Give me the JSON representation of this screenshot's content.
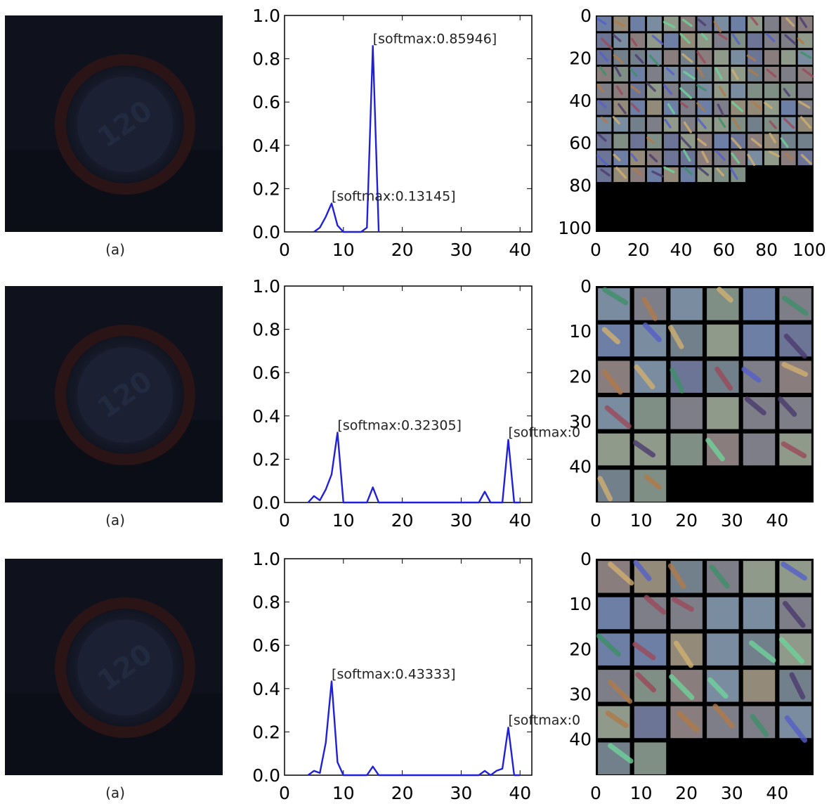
{
  "figure": {
    "captions": [
      "(a)",
      "(a)",
      "(a)"
    ],
    "sign_text": "120"
  },
  "chart_data": [
    {
      "type": "line",
      "title": "",
      "xlabel": "",
      "ylabel": "",
      "xlim": [
        0,
        42
      ],
      "ylim": [
        0,
        1
      ],
      "xticks": [
        "0",
        "10",
        "20",
        "30",
        "40"
      ],
      "yticks": [
        "0.0",
        "0.2",
        "0.4",
        "0.6",
        "0.8",
        "1.0"
      ],
      "x": [
        5,
        6,
        7,
        8,
        9,
        10,
        13,
        14,
        15,
        16
      ],
      "values": [
        0.0,
        0.02,
        0.07,
        0.13145,
        0.03,
        0.0,
        0.0,
        0.02,
        0.85946,
        0.0
      ],
      "color": "#2020d8",
      "annotations": [
        {
          "text": "[softmax:0.85946]",
          "x": 15,
          "y": 0.85946
        },
        {
          "text": "[softmax:0.13145]",
          "x": 8,
          "y": 0.13145
        }
      ]
    },
    {
      "type": "line",
      "title": "",
      "xlabel": "",
      "ylabel": "",
      "xlim": [
        0,
        42
      ],
      "ylim": [
        0,
        1
      ],
      "xticks": [
        "0",
        "10",
        "20",
        "30",
        "40"
      ],
      "yticks": [
        "0.0",
        "0.2",
        "0.4",
        "0.6",
        "0.8",
        "1.0"
      ],
      "x": [
        4,
        5,
        6,
        7,
        8,
        9,
        10,
        14,
        15,
        16,
        33,
        34,
        35,
        36,
        37,
        38,
        39,
        40
      ],
      "values": [
        0.0,
        0.03,
        0.01,
        0.06,
        0.13,
        0.32305,
        0.0,
        0.0,
        0.07,
        0.0,
        0.0,
        0.05,
        0.0,
        0.0,
        0.0,
        0.29,
        0.0,
        0.0
      ],
      "color": "#2020d8",
      "annotations": [
        {
          "text": "[softmax:0.32305]",
          "x": 9,
          "y": 0.32305
        },
        {
          "text": "[softmax:0",
          "x": 38,
          "y": 0.29
        }
      ]
    },
    {
      "type": "line",
      "title": "",
      "xlabel": "",
      "ylabel": "",
      "xlim": [
        0,
        42
      ],
      "ylim": [
        0,
        1
      ],
      "xticks": [
        "0",
        "10",
        "20",
        "30",
        "40"
      ],
      "yticks": [
        "0.0",
        "0.2",
        "0.4",
        "0.6",
        "0.8",
        "1.0"
      ],
      "x": [
        4,
        5,
        6,
        7,
        8,
        9,
        10,
        14,
        15,
        16,
        33,
        34,
        35,
        36,
        37,
        38,
        39,
        40
      ],
      "values": [
        0.0,
        0.02,
        0.01,
        0.15,
        0.43333,
        0.06,
        0.0,
        0.0,
        0.04,
        0.0,
        0.0,
        0.02,
        0.0,
        0.02,
        0.03,
        0.22,
        0.0,
        0.0
      ],
      "color": "#2020d8",
      "annotations": [
        {
          "text": "[softmax:0.43333]",
          "x": 8,
          "y": 0.43333
        },
        {
          "text": "[softmax:0",
          "x": 38,
          "y": 0.22
        }
      ]
    },
    {
      "type": "heatmap",
      "title": "",
      "xticks": [
        "0",
        "20",
        "40",
        "60",
        "80",
        "100"
      ],
      "yticks": [
        "0",
        "20",
        "40",
        "60",
        "80",
        "100"
      ],
      "grid_cols": 13,
      "grid_rows": 13,
      "filled_tiles": 126
    },
    {
      "type": "heatmap",
      "title": "",
      "xticks": [
        "0",
        "10",
        "20",
        "30",
        "40"
      ],
      "yticks": [
        "0",
        "10",
        "20",
        "30",
        "40"
      ],
      "grid_cols": 6,
      "grid_rows": 6,
      "filled_tiles": 32
    },
    {
      "type": "heatmap",
      "title": "",
      "xticks": [
        "0",
        "10",
        "20",
        "30",
        "40"
      ],
      "yticks": [
        "0",
        "10",
        "20",
        "30",
        "40"
      ],
      "grid_cols": 6,
      "grid_rows": 6,
      "filled_tiles": 32
    }
  ]
}
